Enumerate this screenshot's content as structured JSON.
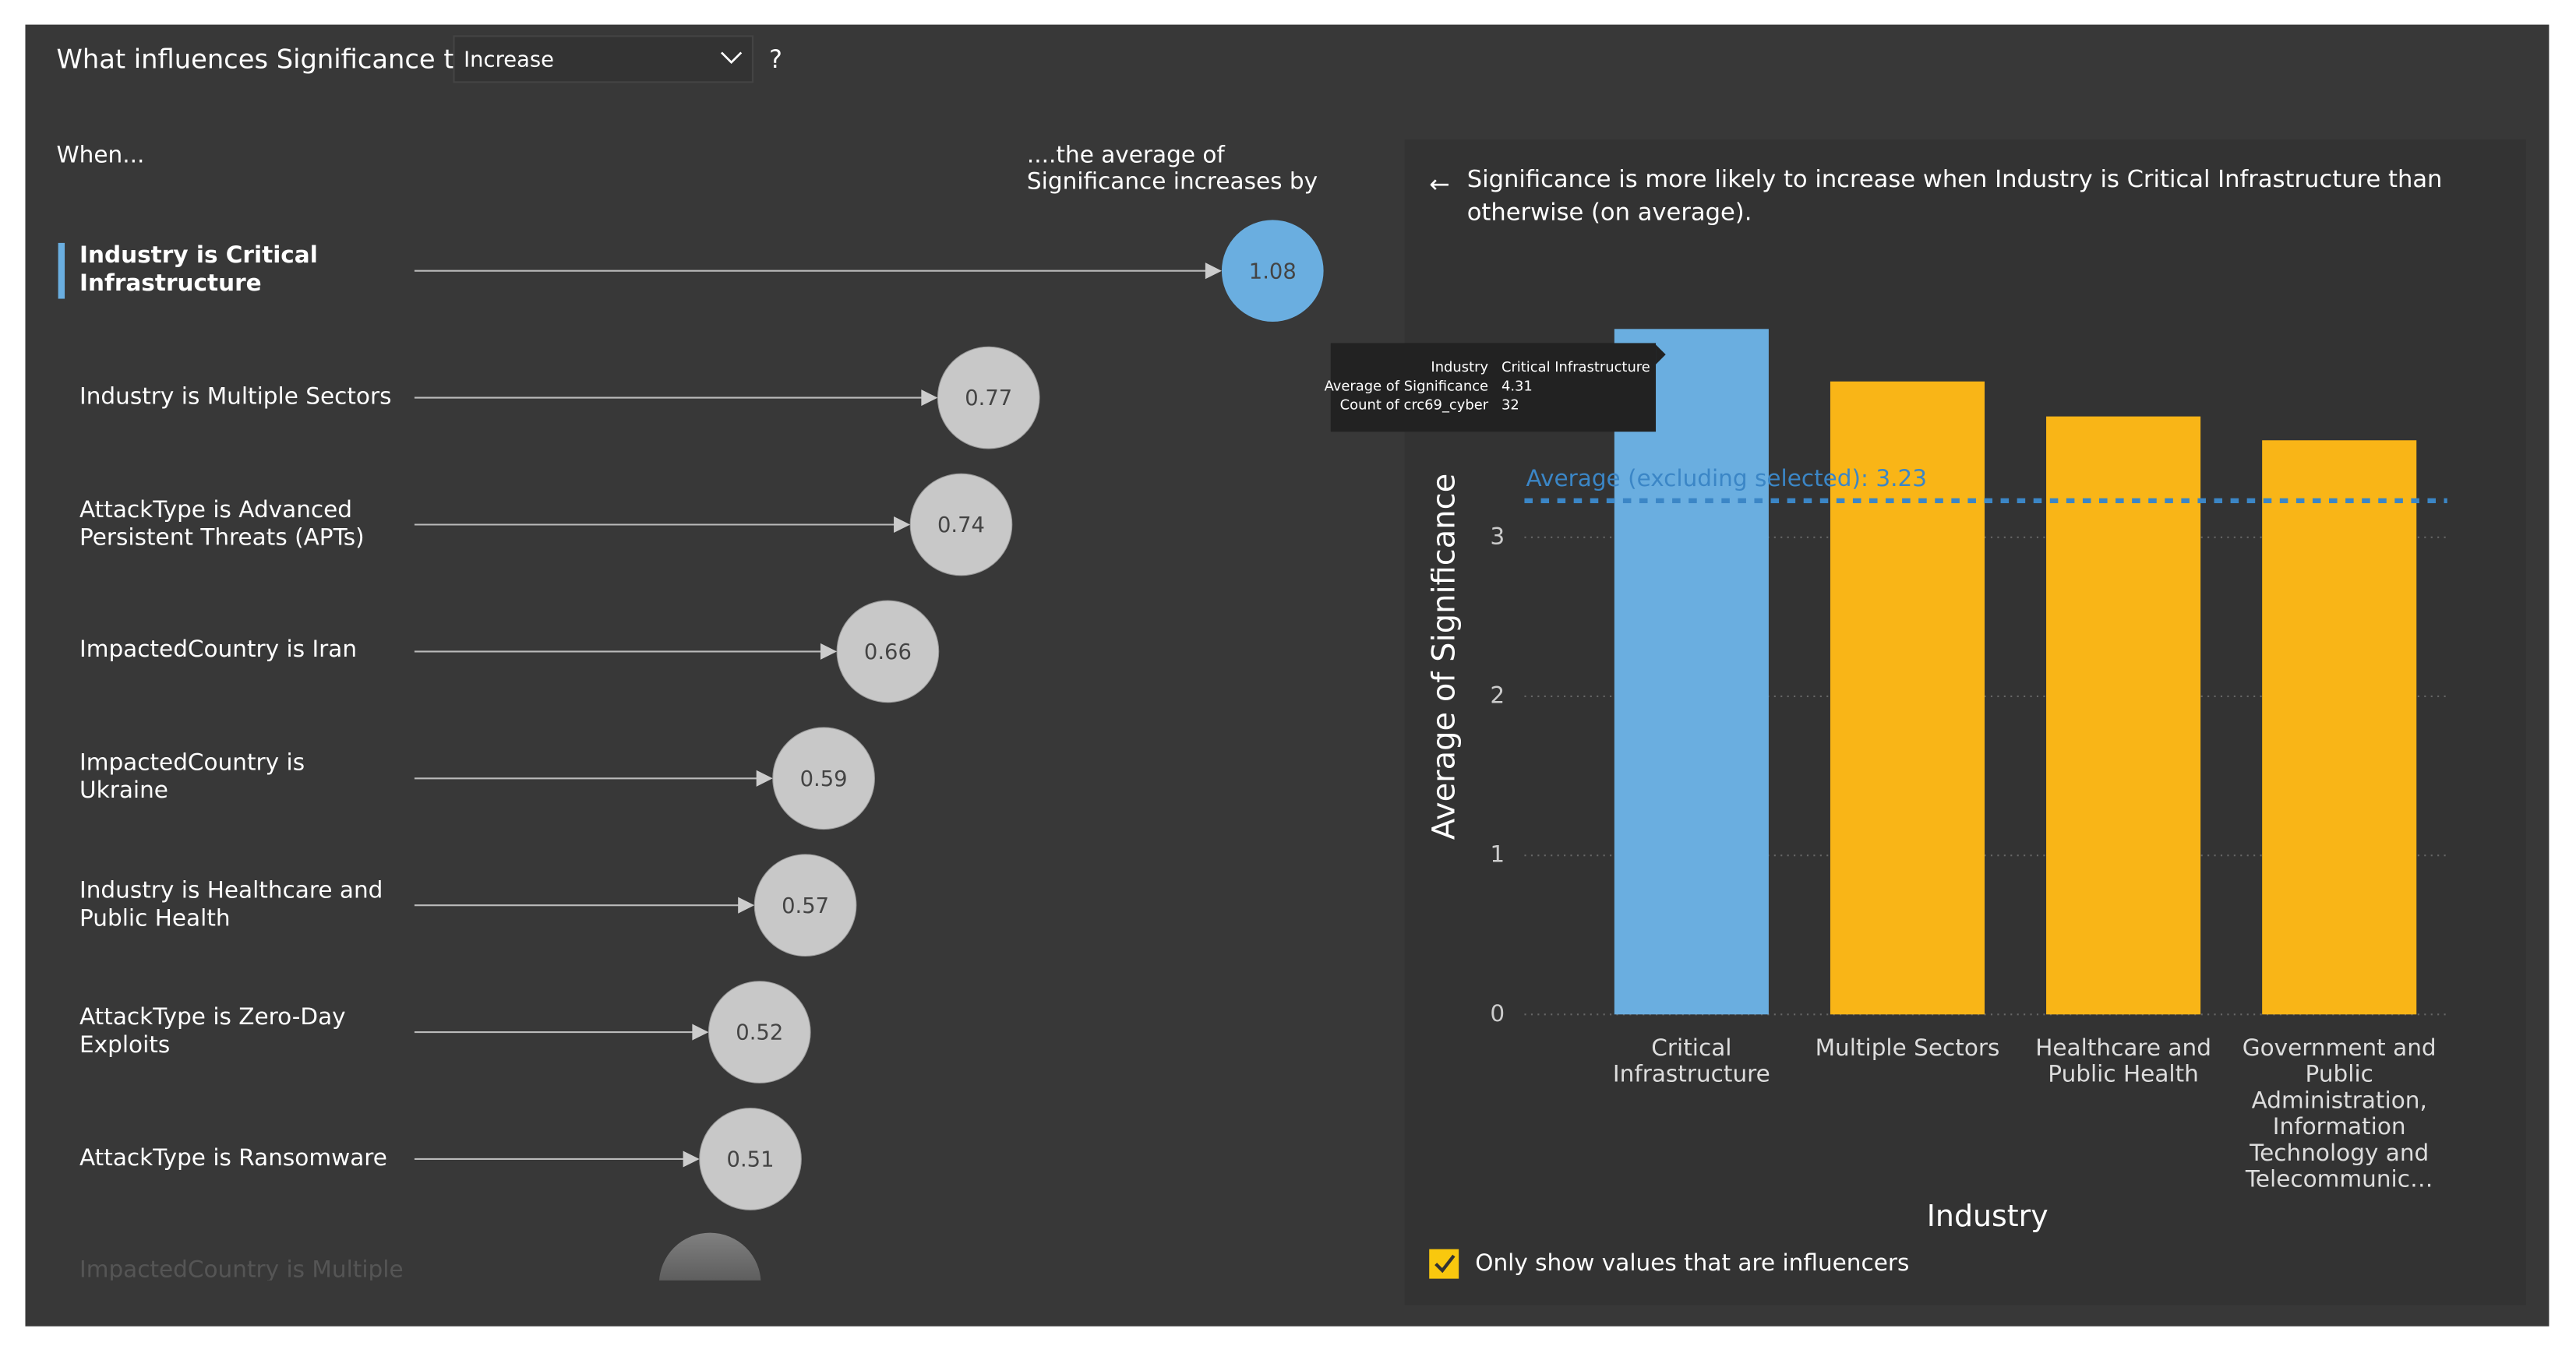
{
  "header": {
    "prefix": "What influences Significance to",
    "dropdown": "Increase",
    "suffix": "?"
  },
  "left": {
    "when_label": "When...",
    "value_header": [
      "....the average of",
      "Significance increases by"
    ],
    "influencers": [
      {
        "label": "Industry is Critical Infrastructure",
        "value": 1.08,
        "selected": true
      },
      {
        "label": "Industry is Multiple Sectors",
        "value": 0.77
      },
      {
        "label": "AttackType is Advanced Persistent Threats (APTs)",
        "value": 0.74
      },
      {
        "label": "ImpactedCountry is Iran",
        "value": 0.66
      },
      {
        "label": "ImpactedCountry is Ukraine",
        "value": 0.59
      },
      {
        "label": "Industry is Healthcare and Public Health",
        "value": 0.57
      },
      {
        "label": "AttackType is Zero-Day Exploits",
        "value": 0.52
      },
      {
        "label": "AttackType is Ransomware",
        "value": 0.51
      }
    ],
    "faded_label": "ImpactedCountry is Multiple"
  },
  "right": {
    "back_icon": "←",
    "description": "Significance is more likely to increase when Industry is Critical Infrastructure than otherwise (on average).",
    "checkbox": {
      "label": "Only show values that are influencers",
      "checked": true
    }
  },
  "chart_data": {
    "type": "bar",
    "x_label": "Industry",
    "y_label": "Average of Significance",
    "categories": [
      "Critical Infrastructure",
      "Multiple Sectors",
      "Healthcare and Public Health",
      "Government and Public Administration, Information Technology and Telecommunic…"
    ],
    "values": [
      4.31,
      3.98,
      3.76,
      3.61
    ],
    "colors": [
      "#6aaee0",
      "#f9b517",
      "#f9b517",
      "#f9b517"
    ],
    "ylim": [
      0,
      4.5
    ],
    "yticks": [
      0,
      1,
      2,
      3
    ],
    "grid": true,
    "reference_line": {
      "label": "Average (excluding selected): 3.23",
      "value": 3.23,
      "color": "#3b86c6"
    },
    "tooltip": [
      [
        "Industry",
        "Critical Infrastructure"
      ],
      [
        "Average of Significance",
        "4.31"
      ],
      [
        "Count of crc69_cyber",
        "32"
      ]
    ]
  }
}
